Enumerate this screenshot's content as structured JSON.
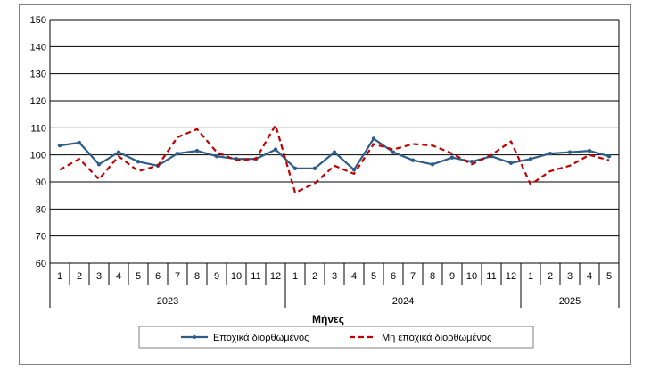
{
  "chart_data": {
    "type": "line",
    "title": "",
    "xlabel": "Μήνες",
    "ylabel": "",
    "ylim": [
      60,
      150
    ],
    "yticks": [
      60,
      70,
      80,
      90,
      100,
      110,
      120,
      130,
      140,
      150
    ],
    "grid": "horizontal",
    "legend_position": "bottom",
    "x": [
      "1",
      "2",
      "3",
      "4",
      "5",
      "6",
      "7",
      "8",
      "9",
      "10",
      "11",
      "12",
      "1",
      "2",
      "3",
      "4",
      "5",
      "6",
      "7",
      "8",
      "9",
      "10",
      "11",
      "12",
      "1",
      "2",
      "3",
      "4",
      "5"
    ],
    "groups": [
      {
        "label": "2023",
        "count": 12
      },
      {
        "label": "2024",
        "count": 12
      },
      {
        "label": "2025",
        "count": 5
      }
    ],
    "series": [
      {
        "name": "Εποχικά διορθωμένος",
        "color": "#2e5d8a",
        "style": "solid-marker",
        "values": [
          103.5,
          104.5,
          96.5,
          101,
          97.5,
          96,
          100.5,
          101.5,
          99.5,
          98.5,
          98.5,
          102,
          95,
          95,
          101,
          94.5,
          106,
          101,
          98,
          96.5,
          99,
          97.5,
          99.5,
          97,
          98.5,
          100.5,
          101,
          101.5,
          99.5
        ]
      },
      {
        "name": "Μη εποχικά διορθωμένος",
        "color": "#c00000",
        "style": "dashed",
        "values": [
          94.5,
          98.5,
          91,
          99.5,
          94,
          96,
          106.5,
          109.5,
          101,
          98,
          98.5,
          111,
          86,
          89.5,
          96,
          93,
          104,
          102,
          104,
          103.5,
          100.5,
          96.5,
          100,
          105,
          89,
          94,
          96,
          100,
          98
        ]
      }
    ]
  }
}
